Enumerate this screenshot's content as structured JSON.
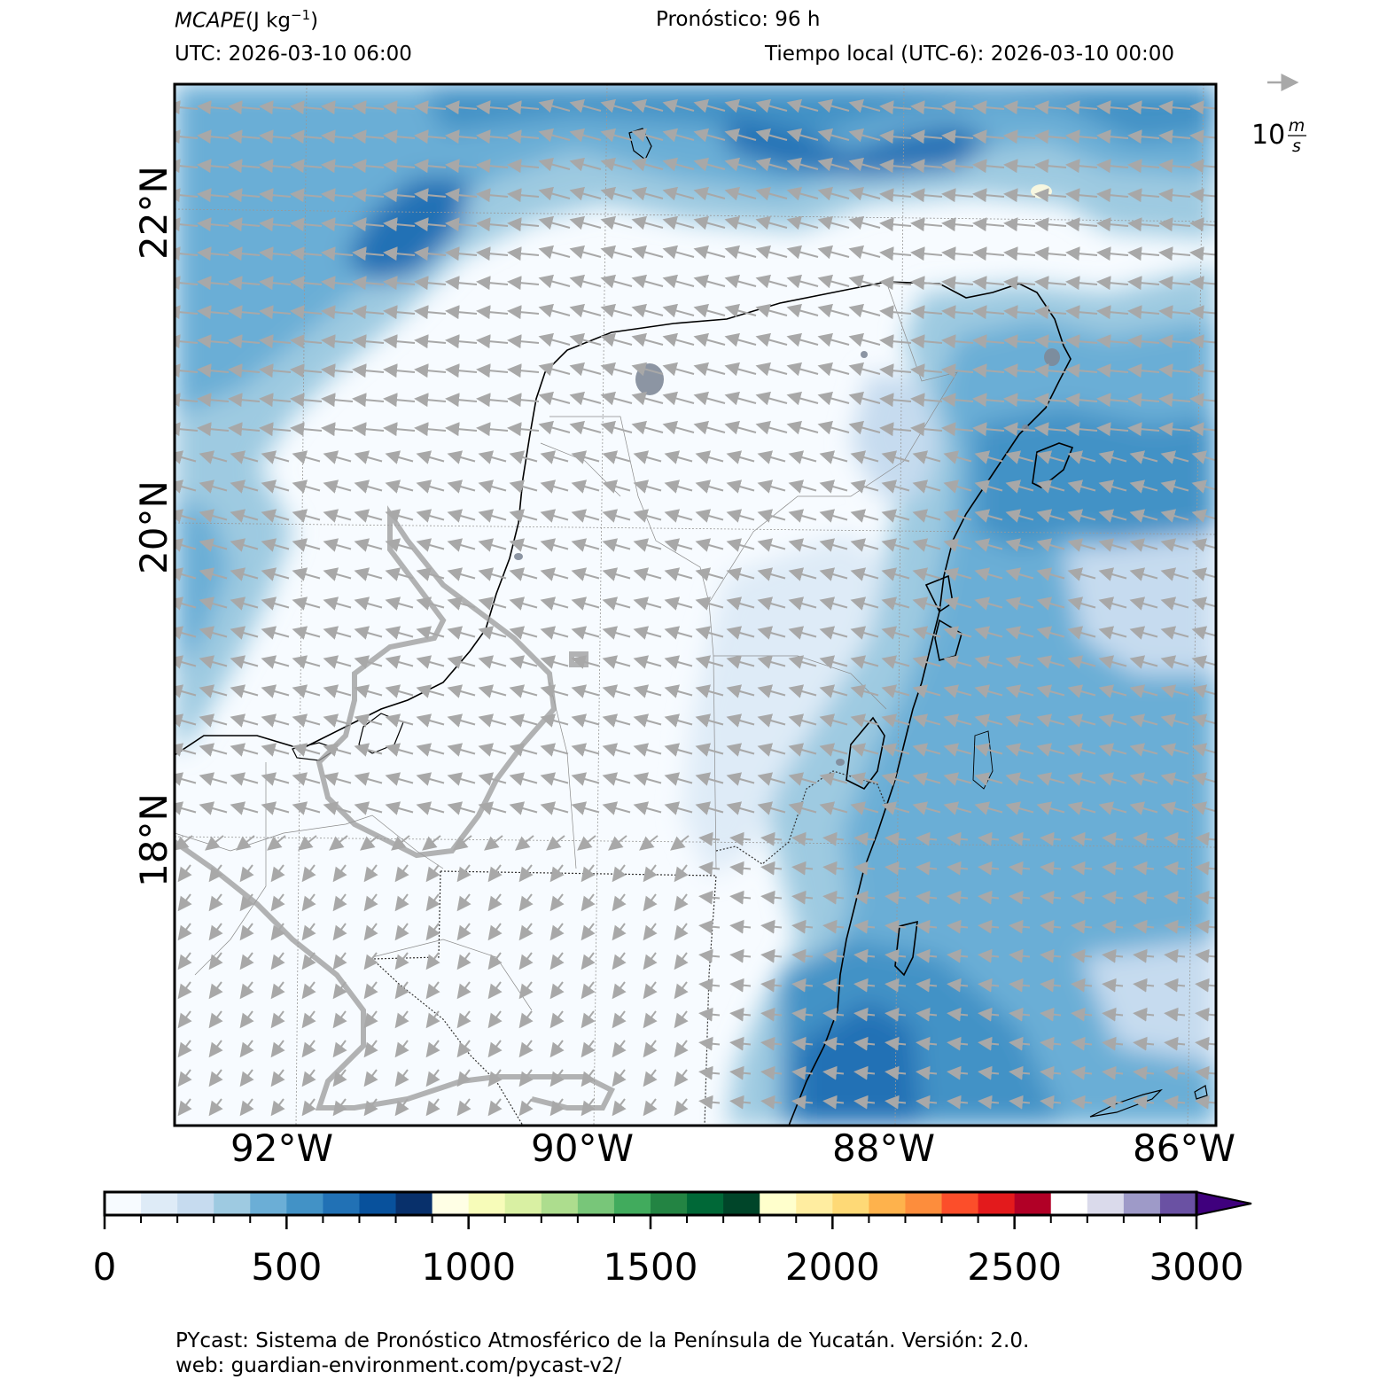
{
  "header": {
    "variable_name": "MCAPE",
    "variable_units": "(J kg",
    "units_exp": "−1",
    "units_close": ")",
    "forecast": "Pronóstico: 96 h",
    "utc": "UTC:  2026-03-10 06:00",
    "local": "Tiempo local (UTC-6): 2026-03-10 00:00"
  },
  "wind_key": {
    "value": "10",
    "unit_num": "m",
    "unit_den": "s"
  },
  "axes": {
    "lat_labels": [
      "22°N",
      "20°N",
      "18°N"
    ],
    "lon_labels": [
      "92°W",
      "90°W",
      "88°W",
      "86°W"
    ]
  },
  "colorbar": {
    "tick_labels": [
      "0",
      "500",
      "1000",
      "1500",
      "2000",
      "2500",
      "3000"
    ],
    "levels": [
      0,
      100,
      200,
      300,
      400,
      500,
      600,
      700,
      800,
      900,
      1000,
      1100,
      1200,
      1300,
      1400,
      1500,
      1600,
      1700,
      1800,
      1900,
      2000,
      2100,
      2200,
      2300,
      2400,
      2500,
      2600,
      2700,
      2800,
      2900,
      3000
    ],
    "colors": [
      "#f7fbff",
      "#deebf7",
      "#c6dbef",
      "#9ecae1",
      "#6baed6",
      "#4292c6",
      "#2171b5",
      "#08519c",
      "#08306b",
      "#ffffe5",
      "#f7fcb9",
      "#d9f0a3",
      "#addd8e",
      "#78c679",
      "#41ab5d",
      "#238443",
      "#006837",
      "#004529",
      "#ffffcc",
      "#ffeda0",
      "#fed976",
      "#feb24c",
      "#fd8d3c",
      "#fc4e2a",
      "#e31a1c",
      "#b10026",
      "#ffffff",
      "#dadaeb",
      "#9e9ac8",
      "#6a51a3",
      "#3f007d"
    ],
    "extend": "max"
  },
  "footer": {
    "line1": "PYcast: Sistema de Pronóstico Atmosférico de la Península de Yucatán. Versión: 2.0.",
    "line2": "web: guardian-environment.com/pycast-v2/"
  }
}
